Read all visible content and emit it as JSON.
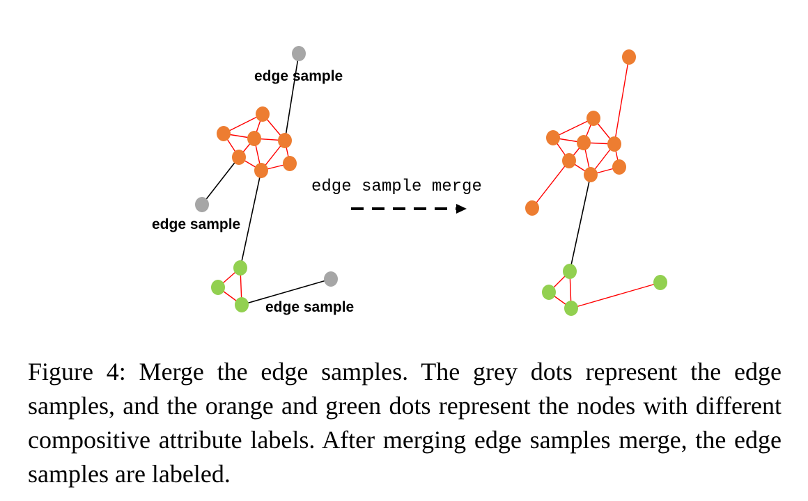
{
  "figure": {
    "colors": {
      "orange": "#ED7D31",
      "green": "#92D050",
      "grey": "#A6A6A6",
      "red_edge": "#FF0000",
      "black_edge": "#000000"
    },
    "before": {
      "label_top": "edge sample",
      "label_left": "edge sample",
      "label_bottom": "edge sample"
    },
    "arrow": {
      "label": "edge sample merge"
    }
  },
  "caption": {
    "text": "Figure 4: Merge the edge samples. The grey dots represent the edge samples, and the orange and green dots represent the nodes with different compositive attribute labels. After merging edge samples merge, the edge samples are labeled."
  }
}
